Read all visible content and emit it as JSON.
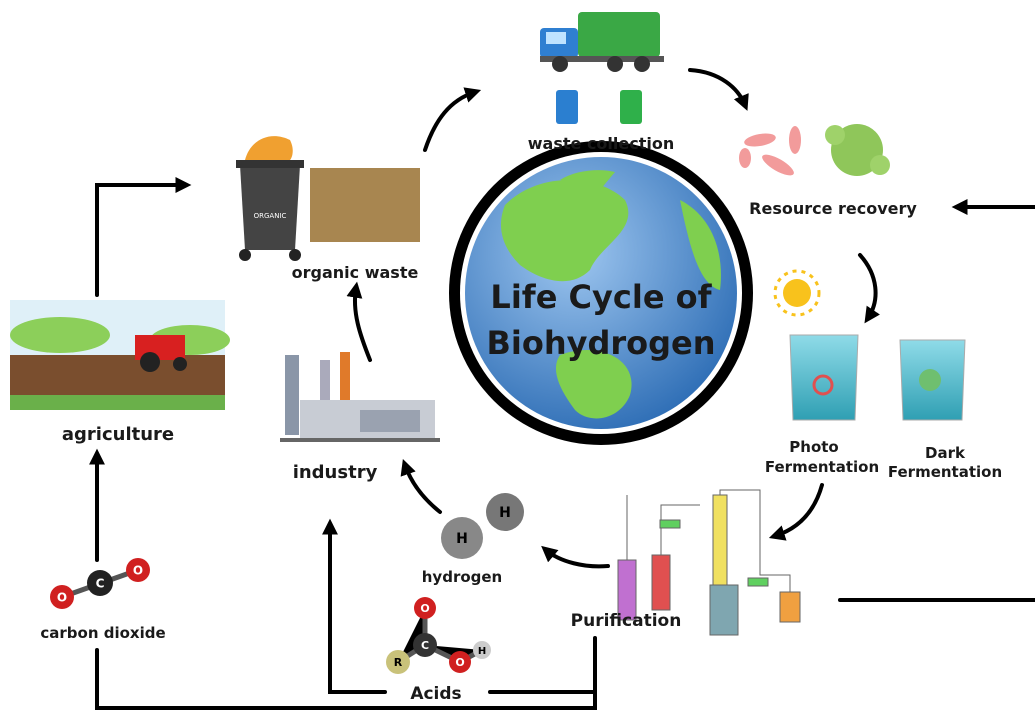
{
  "title": {
    "lines": [
      "Life Cycle of",
      "Biohydrogen"
    ]
  },
  "nodes": [
    {
      "label": "waste collection"
    },
    {
      "label": "Resource recovery"
    },
    {
      "label": "organic waste"
    },
    {
      "label": "agriculture"
    },
    {
      "label": "industry"
    },
    {
      "lines": [
        "Photo",
        "Fermentation"
      ]
    },
    {
      "lines": [
        "Dark",
        "Fermentation"
      ]
    },
    {
      "label": "hydrogen"
    },
    {
      "label": "Purification"
    },
    {
      "label": "carbon dioxide"
    },
    {
      "label": "Acids"
    }
  ],
  "icons": {
    "bin_label": "ORGANIC",
    "hydrogen_atoms": [
      "H",
      "H"
    ],
    "co2_atoms": [
      "O",
      "C",
      "O"
    ],
    "acid_atoms": [
      "R",
      "C",
      "O",
      "O",
      "H"
    ]
  }
}
